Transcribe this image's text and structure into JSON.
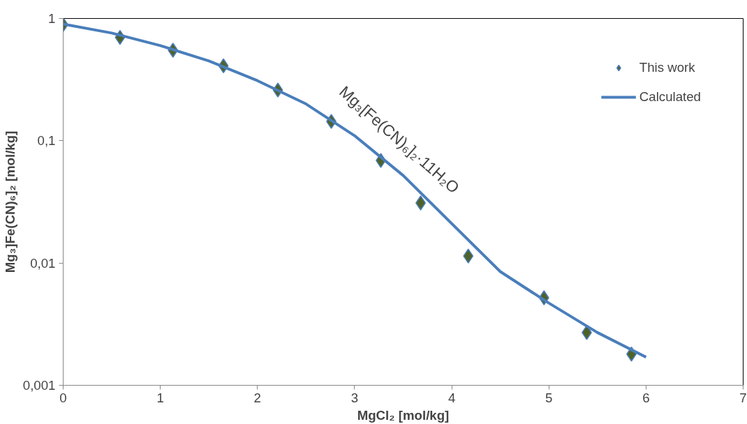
{
  "chart_data": {
    "type": "scatter",
    "xlabel": "MgCl₂ [mol/kg]",
    "ylabel": "Mg₃]Fe(CN)₆]₂ [mol/kg]",
    "annotations": [
      "Mg₃[Fe(CN)₆]₂·11H₂O"
    ],
    "xlim": [
      0,
      7
    ],
    "xticks": [
      0,
      1,
      2,
      3,
      4,
      5,
      6,
      7
    ],
    "ylim": [
      0.001,
      1
    ],
    "yticks": [
      {
        "value": 0.001,
        "label": "0,001"
      },
      {
        "value": 0.01,
        "label": "0,01"
      },
      {
        "value": 0.1,
        "label": "0,1"
      },
      {
        "value": 1,
        "label": "1"
      }
    ],
    "log": true,
    "grid": false,
    "legend": "top right",
    "series": [
      {
        "name": "This work",
        "marker": "diamond",
        "color": "#4f6228",
        "x": [
          0,
          0.585,
          1.13,
          1.65,
          2.21,
          2.76,
          3.27,
          3.68,
          4.17,
          4.95,
          5.39,
          5.85
        ],
        "values": [
          0.89,
          0.7,
          0.55,
          0.41,
          0.26,
          0.144,
          0.069,
          0.031,
          0.0114,
          0.0052,
          0.0027,
          0.0018
        ]
      },
      {
        "name": "Calculated",
        "type": "line",
        "color": "#4a7ebb",
        "line_style": "solid",
        "x": [
          0,
          0.5,
          1,
          1.5,
          2,
          2.5,
          3,
          3.5,
          4,
          4.5,
          5,
          5.5,
          6
        ],
        "values": [
          0.9,
          0.76,
          0.6,
          0.45,
          0.31,
          0.2,
          0.11,
          0.052,
          0.021,
          0.0085,
          0.0047,
          0.0027,
          0.0017
        ]
      }
    ]
  }
}
